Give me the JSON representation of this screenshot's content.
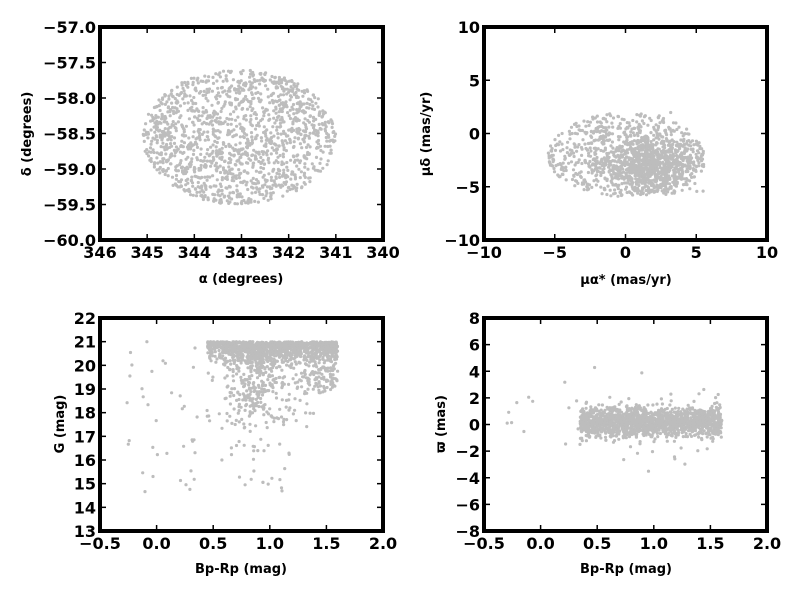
{
  "chart_data": [
    {
      "type": "scatter",
      "panel": "sky-position",
      "xlabel": "α (degrees)",
      "ylabel": "δ (degrees)",
      "xlim": [
        346,
        340
      ],
      "ylim": [
        -60.0,
        -57.0
      ],
      "xticks": [
        "346",
        "345",
        "344",
        "343",
        "342",
        "341",
        "340"
      ],
      "yticks": [
        "−57.0",
        "−57.5",
        "−58.0",
        "−58.5",
        "−59.0",
        "−59.5",
        "−60.0"
      ],
      "marker_color": "#bdbdbd",
      "distribution": {
        "shape": "ellipse",
        "center": [
          343.05,
          -58.55
        ],
        "radius_x": 2.05,
        "radius_y": 0.95,
        "count": 1500
      }
    },
    {
      "type": "scatter",
      "panel": "proper-motion",
      "xlabel": "μα* (mas/yr)",
      "ylabel": "μδ (mas/yr)",
      "xlim": [
        -10,
        10
      ],
      "ylim": [
        -10,
        10
      ],
      "xticks": [
        "−10",
        "−5",
        "0",
        "5",
        "10"
      ],
      "yticks": [
        "10",
        "5",
        "0",
        "−5",
        "−10"
      ],
      "marker_color": "#bdbdbd",
      "distribution": {
        "shape": "circle-plus-cluster",
        "center": [
          0.0,
          -2.0
        ],
        "radius": 5.5,
        "cluster_center": [
          1.8,
          -3.0
        ],
        "count": 1500
      }
    },
    {
      "type": "scatter",
      "panel": "color-magnitude",
      "xlabel": "Bp-Rp (mag)",
      "ylabel": "G (mag)",
      "xlim": [
        -0.5,
        2.0
      ],
      "ylim": [
        13,
        22
      ],
      "xticks": [
        "−0.5",
        "0.0",
        "0.5",
        "1.0",
        "1.5",
        "2.0"
      ],
      "yticks": [
        "22",
        "21",
        "20",
        "19",
        "18",
        "17",
        "16",
        "15",
        "14",
        "13"
      ],
      "marker_color": "#bdbdbd",
      "distribution": {
        "shape": "faint-limited-cmd",
        "g_limit": 21.0,
        "bp_rp_range": [
          0.35,
          1.6
        ],
        "count": 1600
      }
    },
    {
      "type": "scatter",
      "panel": "parallax",
      "xlabel": "Bp-Rp (mag)",
      "ylabel": "ϖ (mas)",
      "xlim": [
        -0.5,
        2.0
      ],
      "ylim": [
        -8,
        8
      ],
      "xticks": [
        "−0.5",
        "0.0",
        "0.5",
        "1.0",
        "1.5",
        "2.0"
      ],
      "yticks": [
        "8",
        "6",
        "4",
        "2",
        "0",
        "−2",
        "−4",
        "−6",
        "−8"
      ],
      "marker_color": "#bdbdbd",
      "distribution": {
        "shape": "horizontal-band",
        "center_y": 0.2,
        "bp_rp_range": [
          0.35,
          1.6
        ],
        "count": 1600
      }
    }
  ]
}
